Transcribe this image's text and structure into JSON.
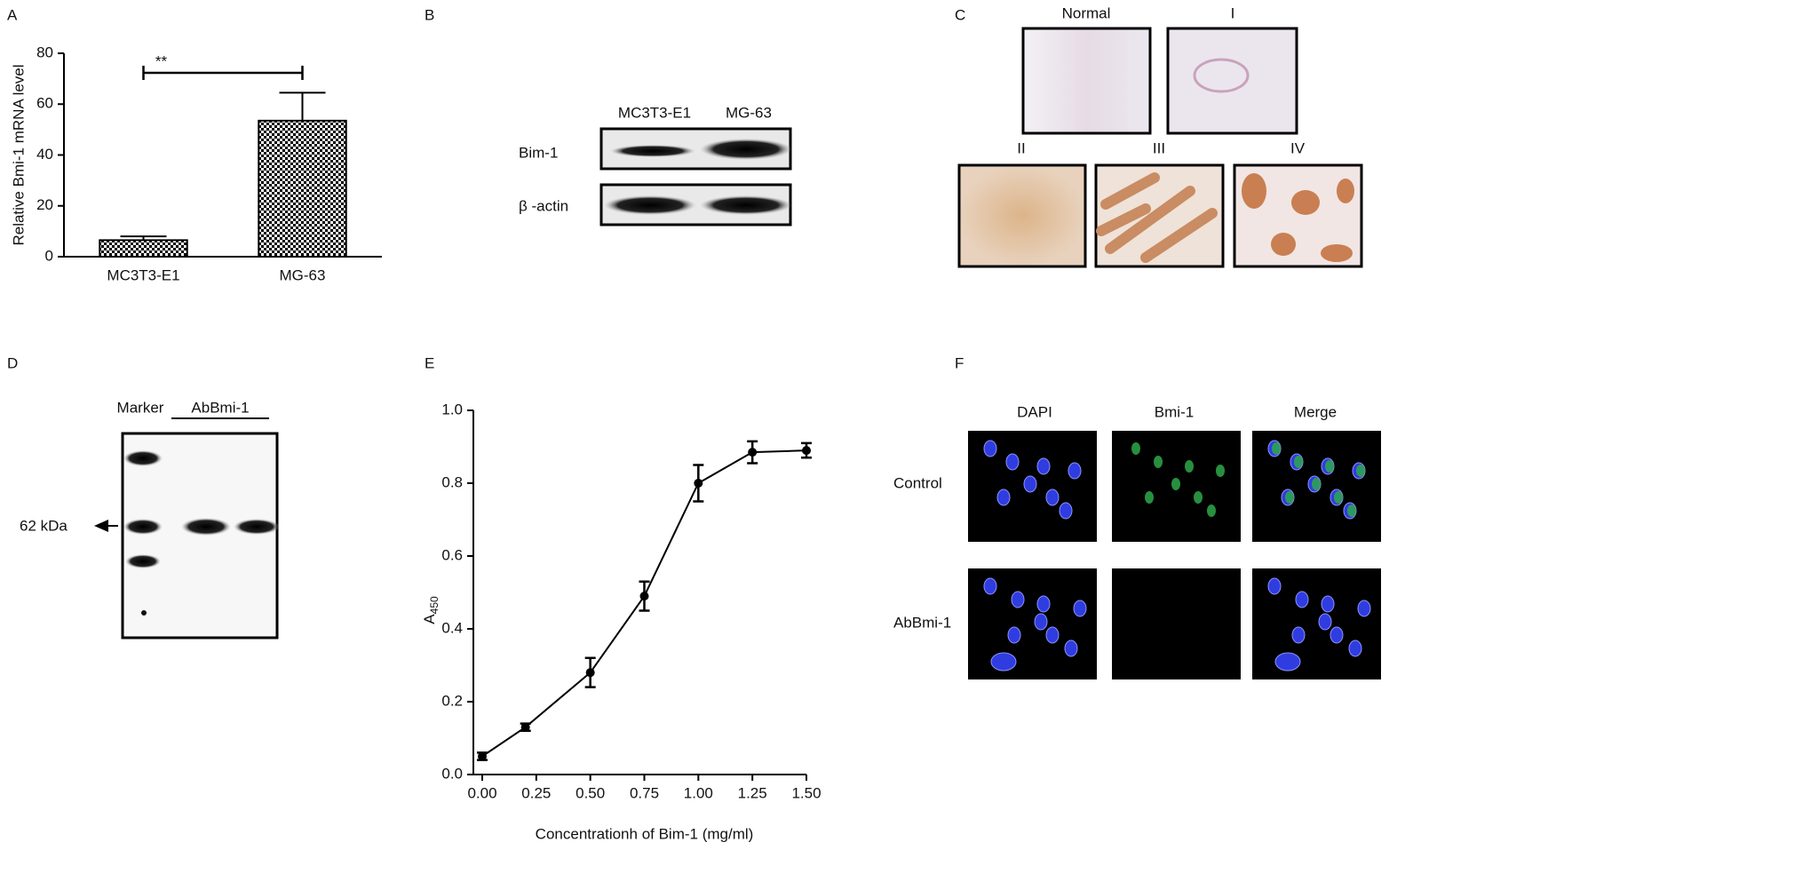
{
  "panel_letters": [
    "A",
    "B",
    "C",
    "D",
    "E",
    "F"
  ],
  "chart_data": [
    {
      "type": "bar",
      "y_label": "Relative Bmi-1 mRNA level",
      "categories": [
        "MC3T3-E1",
        "MG-63"
      ],
      "values": [
        6.5,
        53.5
      ],
      "errors": [
        1.5,
        11
      ],
      "color": "#000000",
      "ylim": [
        0,
        80
      ],
      "yticks": [
        0,
        20,
        40,
        60,
        80
      ],
      "annotation": "**"
    },
    {
      "type": "line",
      "x_label": "Concentrationh of Bim-1 (mg/ml)",
      "y_label": "A",
      "y_label_sub": "450",
      "x": [
        0,
        0.2,
        0.5,
        0.75,
        1.0,
        1.25,
        1.5
      ],
      "values": [
        0.05,
        0.13,
        0.28,
        0.49,
        0.8,
        0.885,
        0.89
      ],
      "errors": [
        0.01,
        0.01,
        0.04,
        0.04,
        0.05,
        0.03,
        0.02
      ],
      "color": "#000000",
      "xlim": [
        0,
        1.5
      ],
      "xticks": [
        {
          "value": 0,
          "label": "0.00"
        },
        {
          "value": 0.25,
          "label": "0.25"
        },
        {
          "value": 0.5,
          "label": "0.50"
        },
        {
          "value": 0.75,
          "label": "0.75"
        },
        {
          "value": 1.0,
          "label": "1.00"
        },
        {
          "value": 1.25,
          "label": "1.25"
        },
        {
          "value": 1.5,
          "label": "1.50"
        }
      ],
      "ylim": [
        0,
        1.0
      ],
      "yticks": [
        {
          "value": 0,
          "label": "0.0"
        },
        {
          "value": 0.2,
          "label": "0.2"
        },
        {
          "value": 0.4,
          "label": "0.4"
        },
        {
          "value": 0.6,
          "label": "0.6"
        },
        {
          "value": 0.8,
          "label": "0.8"
        },
        {
          "value": 1.0,
          "label": "1.0"
        }
      ]
    }
  ],
  "panel_b": {
    "lanes": [
      "MC3T3-E1",
      "MG-63"
    ],
    "rows": [
      "Bim-1",
      "β -actin"
    ]
  },
  "panel_c": {
    "grades": [
      "Normal",
      "I",
      "II",
      "III",
      "IV"
    ]
  },
  "panel_d": {
    "marker": "Marker",
    "antibody": "AbBmi-1",
    "size": "62 kDa"
  },
  "panel_f": {
    "columns": [
      "DAPI",
      "Bmi-1",
      "Merge"
    ],
    "rows": [
      "Control",
      "AbBmi-1"
    ]
  }
}
